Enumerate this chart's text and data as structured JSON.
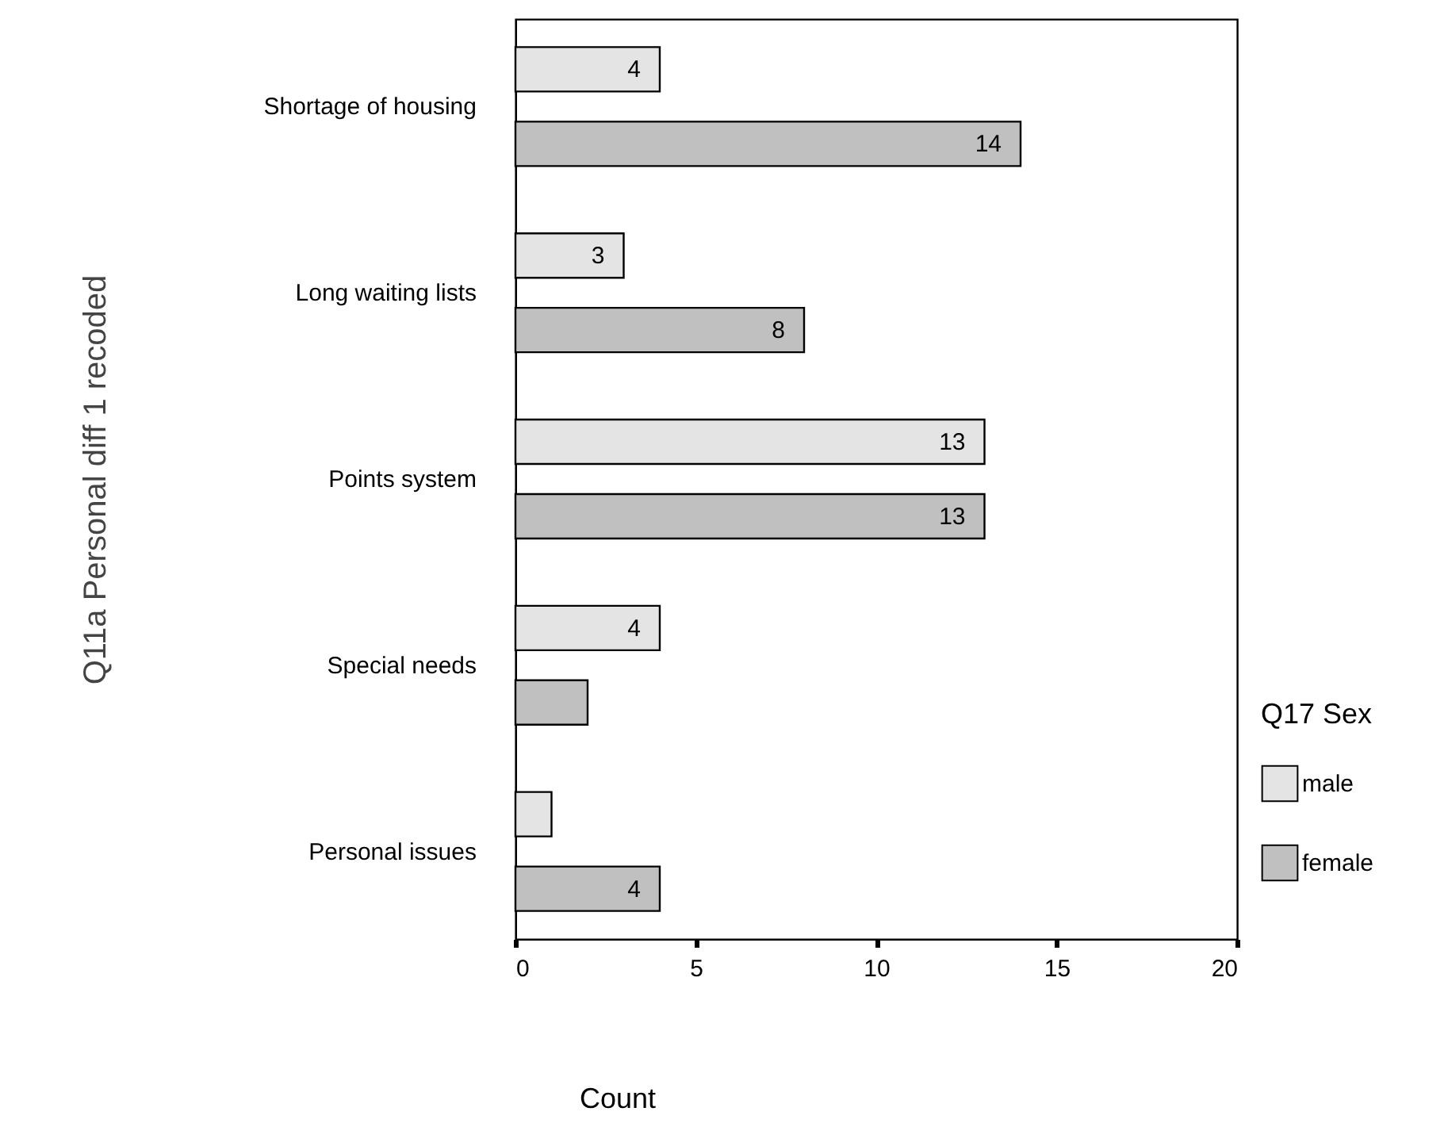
{
  "chart_data": {
    "type": "bar",
    "orientation": "horizontal",
    "xlabel": "Count",
    "ylabel": "Q11a Personal diff 1 recoded",
    "legend_title": "Q17 Sex",
    "legend": "bottom right",
    "categories": [
      "Shortage of housing",
      "Long waiting lists",
      "Points system",
      "Special needs",
      "Personal issues"
    ],
    "series": [
      {
        "name": "male",
        "color": "#e4e4e4",
        "values": [
          4,
          3,
          13,
          4,
          1
        ],
        "value_labels": [
          "4",
          "3",
          "13",
          "4",
          null
        ]
      },
      {
        "name": "female",
        "color": "#c0c0c0",
        "values": [
          14,
          8,
          13,
          2,
          4
        ],
        "value_labels": [
          "14",
          "8",
          "13",
          null,
          "4"
        ]
      }
    ],
    "xlim": [
      0,
      20
    ],
    "xticks": [
      0,
      5,
      10,
      15,
      20
    ],
    "grid": false
  }
}
